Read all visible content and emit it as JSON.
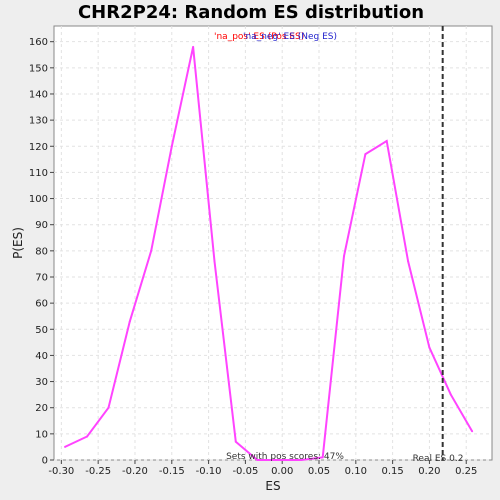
{
  "colors": {
    "background": "#eeeeee",
    "plot_bg": "#ffffff",
    "grid": "#e2e2e2",
    "line": "#ff44ff",
    "legend_pos": "#ff0000",
    "legend_neg": "#2222cc",
    "real_es_line": "#333333"
  },
  "chart_data": {
    "type": "line",
    "title": "CHR2P24: Random ES distribution",
    "xlabel": "ES",
    "ylabel": "P(ES)",
    "xlim": [
      -0.31,
      0.285
    ],
    "ylim": [
      0,
      166
    ],
    "xticks": [
      -0.3,
      -0.25,
      -0.2,
      -0.15,
      -0.1,
      -0.05,
      0.0,
      0.05,
      0.1,
      0.15,
      0.2,
      0.25
    ],
    "xtick_labels": [
      "-0.30",
      "-0.25",
      "-0.20",
      "-0.15",
      "-0.10",
      "-0.05",
      "0.00",
      "0.05",
      "0.10",
      "0.15",
      "0.20",
      "0.25"
    ],
    "yticks": [
      0,
      10,
      20,
      30,
      40,
      50,
      60,
      70,
      80,
      90,
      100,
      110,
      120,
      130,
      140,
      150,
      160
    ],
    "grid": true,
    "legend": {
      "pos_label": "'na_pos' ES (Pos ES)",
      "neg_label": "'na_neg' ES (Neg ES)",
      "placement": "top-center"
    },
    "series": [
      {
        "x": [
          -0.295,
          -0.265,
          -0.236,
          -0.207,
          -0.178,
          -0.15,
          -0.121,
          -0.092,
          -0.063,
          -0.034,
          0.0,
          0.026,
          0.055,
          0.084,
          0.113,
          0.142,
          0.171,
          0.2,
          0.229,
          0.258
        ],
        "values": [
          5,
          9,
          20,
          53,
          80,
          120,
          158,
          76,
          7,
          0,
          0,
          0,
          1,
          78,
          117,
          122,
          76,
          43,
          25,
          11
        ]
      }
    ],
    "real_es": {
      "x": 0.218,
      "label": "Real ES 0.2"
    },
    "footnote": "Sets with pos scores: 47%"
  }
}
